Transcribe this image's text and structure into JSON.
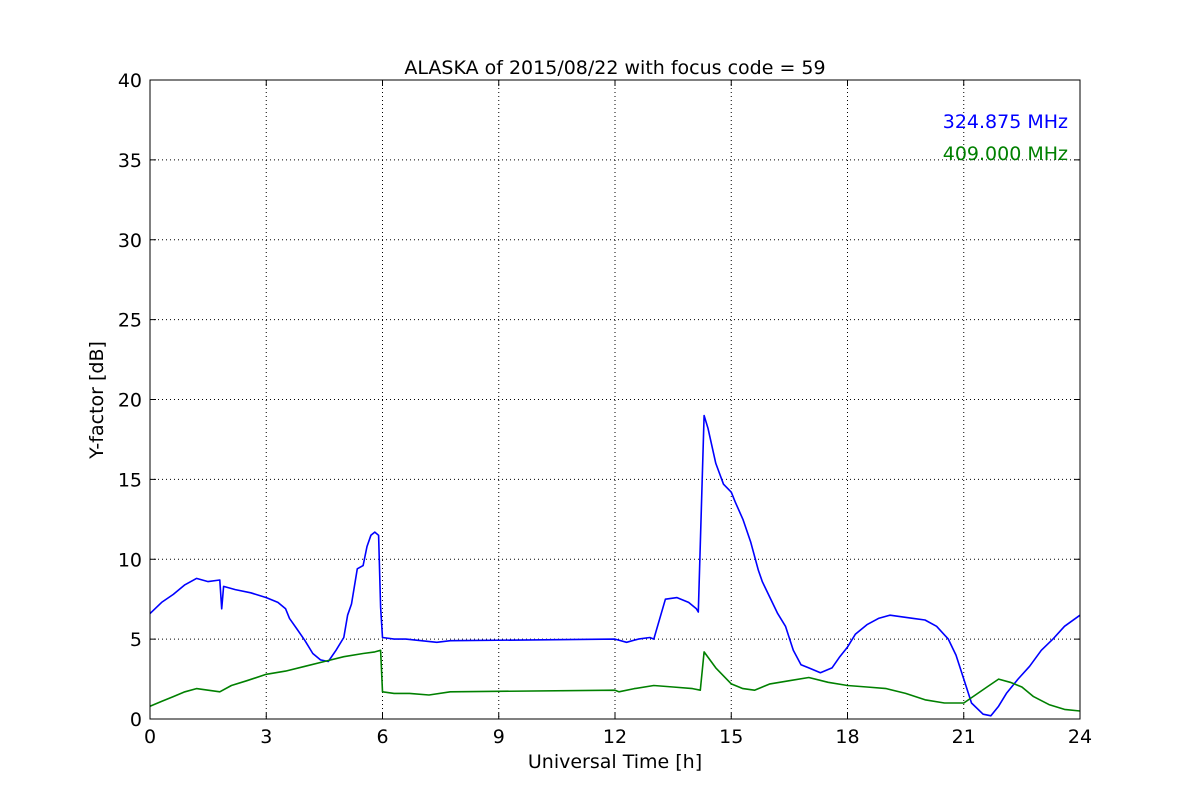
{
  "chart_data": {
    "type": "line",
    "title": "ALASKA of 2015/08/22 with focus code = 59",
    "xlabel": "Universal Time [h]",
    "ylabel": "Y-factor [dB]",
    "xlim": [
      0,
      24
    ],
    "ylim": [
      0,
      40
    ],
    "xticks": [
      0,
      3,
      6,
      9,
      12,
      15,
      18,
      21,
      24
    ],
    "yticks": [
      0,
      5,
      10,
      15,
      20,
      25,
      30,
      35,
      40
    ],
    "grid": true,
    "legend_position": "top-right",
    "series": [
      {
        "name": "324.875 MHz",
        "color": "#0000ff",
        "x": [
          0,
          0.3,
          0.6,
          0.9,
          1.2,
          1.5,
          1.8,
          1.85,
          1.9,
          2.2,
          2.6,
          3.0,
          3.3,
          3.5,
          3.6,
          3.8,
          4.0,
          4.2,
          4.4,
          4.6,
          4.8,
          5.0,
          5.1,
          5.2,
          5.35,
          5.5,
          5.6,
          5.7,
          5.8,
          5.9,
          5.95,
          6.0,
          6.3,
          6.6,
          7.0,
          7.4,
          7.75,
          12.0,
          12.3,
          12.6,
          12.9,
          13.0,
          13.3,
          13.6,
          13.9,
          14.1,
          14.15,
          14.3,
          14.4,
          14.6,
          14.8,
          15.0,
          15.1,
          15.3,
          15.5,
          15.7,
          15.8,
          16.0,
          16.2,
          16.4,
          16.6,
          16.8,
          17.0,
          17.3,
          17.6,
          17.8,
          18.0,
          18.2,
          18.5,
          18.8,
          19.1,
          19.4,
          19.7,
          20.0,
          20.3,
          20.6,
          20.8,
          21.0,
          21.2,
          21.5,
          21.7,
          21.9,
          22.1,
          22.4,
          22.7,
          23.0,
          23.3,
          23.6,
          24.0
        ],
        "y": [
          6.6,
          7.3,
          7.8,
          8.4,
          8.8,
          8.6,
          8.7,
          6.9,
          8.3,
          8.1,
          7.9,
          7.6,
          7.3,
          6.9,
          6.3,
          5.6,
          4.9,
          4.1,
          3.7,
          3.6,
          4.3,
          5.1,
          6.5,
          7.2,
          9.4,
          9.6,
          10.8,
          11.5,
          11.7,
          11.5,
          7.0,
          5.1,
          5.0,
          5.0,
          4.9,
          4.8,
          4.9,
          5.0,
          4.8,
          5.0,
          5.1,
          5.0,
          7.5,
          7.6,
          7.3,
          6.9,
          6.7,
          19.0,
          18.2,
          16.0,
          14.7,
          14.2,
          13.6,
          12.5,
          11.1,
          9.3,
          8.6,
          7.6,
          6.6,
          5.8,
          4.3,
          3.4,
          3.2,
          2.9,
          3.2,
          3.9,
          4.5,
          5.3,
          5.9,
          6.3,
          6.5,
          6.4,
          6.3,
          6.2,
          5.8,
          5.0,
          4.0,
          2.5,
          1.0,
          0.3,
          0.2,
          0.8,
          1.6,
          2.5,
          3.3,
          4.3,
          5.0,
          5.8,
          6.5
        ]
      },
      {
        "name": "409.000 MHz",
        "color": "#008000",
        "x": [
          0,
          0.3,
          0.6,
          0.9,
          1.2,
          1.5,
          1.8,
          2.1,
          2.5,
          3.0,
          3.5,
          4.0,
          4.5,
          5.0,
          5.5,
          5.8,
          5.95,
          6.0,
          6.3,
          6.7,
          7.2,
          7.75,
          12.0,
          12.1,
          12.5,
          13.0,
          13.5,
          14.0,
          14.2,
          14.3,
          14.6,
          15.0,
          15.3,
          15.6,
          16.0,
          16.5,
          17.0,
          17.5,
          18.0,
          18.5,
          19.0,
          19.5,
          20.0,
          20.5,
          21.0,
          21.3,
          21.6,
          21.9,
          22.2,
          22.5,
          22.8,
          23.2,
          23.6,
          24.0
        ],
        "y": [
          0.8,
          1.1,
          1.4,
          1.7,
          1.9,
          1.8,
          1.7,
          2.1,
          2.4,
          2.8,
          3.0,
          3.3,
          3.6,
          3.9,
          4.1,
          4.2,
          4.3,
          1.7,
          1.6,
          1.6,
          1.5,
          1.7,
          1.8,
          1.7,
          1.9,
          2.1,
          2.0,
          1.9,
          1.8,
          4.2,
          3.2,
          2.2,
          1.9,
          1.8,
          2.2,
          2.4,
          2.6,
          2.3,
          2.1,
          2.0,
          1.9,
          1.6,
          1.2,
          1.0,
          1.0,
          1.5,
          2.0,
          2.5,
          2.3,
          2.0,
          1.4,
          0.9,
          0.6,
          0.5
        ]
      }
    ]
  }
}
